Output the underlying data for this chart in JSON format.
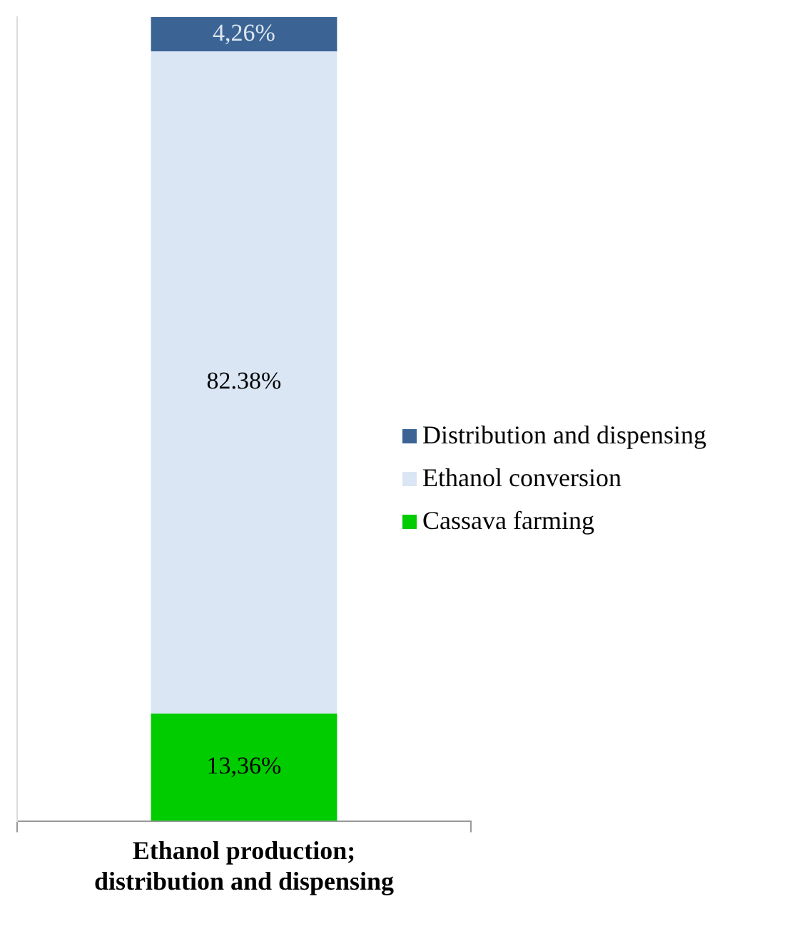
{
  "chart_data": {
    "type": "bar",
    "stacked": true,
    "categories": [
      "Ethanol production; distribution and dispensing"
    ],
    "series": [
      {
        "name": "Cassava farming",
        "color": "#00cc00",
        "values": [
          13.36
        ],
        "value_labels": [
          "13,36%"
        ]
      },
      {
        "name": "Ethanol conversion",
        "color": "#dae6f4",
        "values": [
          82.38
        ],
        "value_labels": [
          "82.38%"
        ]
      },
      {
        "name": "Distribution and dispensing",
        "color": "#3b6494",
        "values": [
          4.26
        ],
        "value_labels": [
          "4,26%"
        ]
      }
    ],
    "legend": "right",
    "tick_labels": "x",
    "grid": false
  }
}
